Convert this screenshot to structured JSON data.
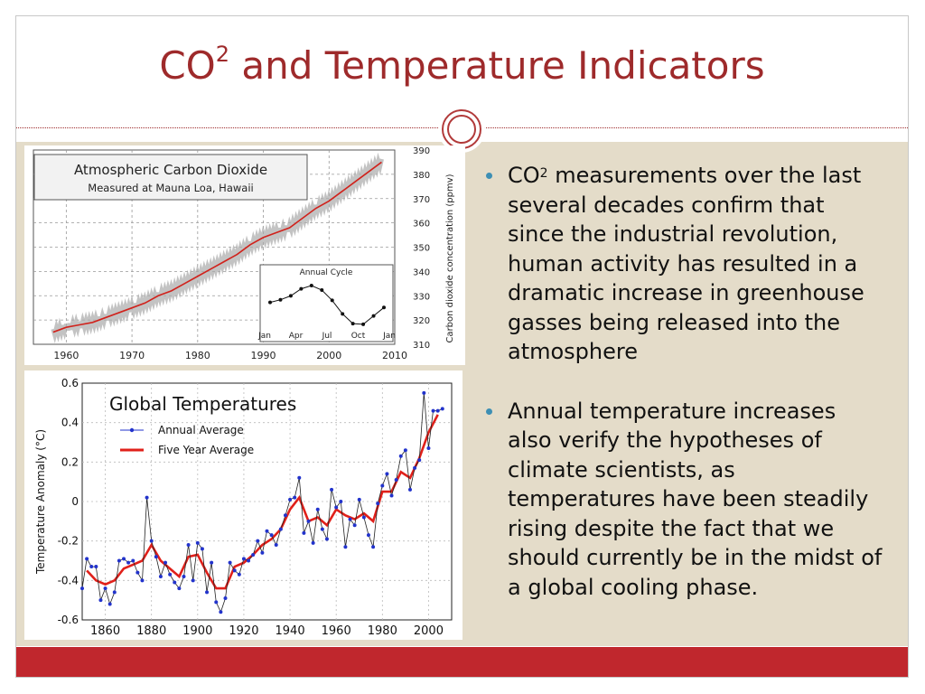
{
  "slide": {
    "title_main": "CO",
    "title_sup": "2",
    "title_rest": " and Temperature Indicators",
    "bullets": [
      {
        "lead": "CO",
        "sup": "2",
        "text": " measurements over the last several decades confirm that since the industrial revolution, human activity has resulted in a dramatic increase in greenhouse gasses being released into the atmosphere"
      },
      {
        "lead": "",
        "sup": "",
        "text": "Annual temperature increases also verify the hypotheses of climate scientists, as temperatures have been steadily rising despite the fact that we should currently be in the midst of a global cooling phase."
      }
    ],
    "colors": {
      "accent": "#9e2a2b",
      "bar": "#c0272d",
      "panel": "#e4dcc9",
      "bullet": "#3d8fb4"
    }
  },
  "chart_data": [
    {
      "type": "line",
      "title": "Atmospheric Carbon Dioxide",
      "subtitle": "Measured at Mauna Loa, Hawaii",
      "xlabel": "",
      "ylabel": "Carbon dioxide concentration (ppmv)",
      "xlim": [
        1955,
        2010
      ],
      "ylim": [
        310,
        390
      ],
      "x_ticks": [
        "1960",
        "1970",
        "1980",
        "1990",
        "2000",
        "2010"
      ],
      "y_ticks": [
        "310",
        "320",
        "330",
        "340",
        "350",
        "360",
        "370",
        "380",
        "390"
      ],
      "grid": true,
      "series": [
        {
          "x": [
            1958,
            1960,
            1962,
            1964,
            1966,
            1968,
            1970,
            1972,
            1974,
            1976,
            1978,
            1980,
            1982,
            1984,
            1986,
            1988,
            1990,
            1992,
            1994,
            1996,
            1998,
            2000,
            2002,
            2004,
            2006,
            2008
          ],
          "y": [
            315,
            317,
            318,
            319,
            321,
            323,
            325,
            327,
            330,
            332,
            335,
            338,
            341,
            344,
            347,
            351,
            354,
            356,
            358,
            362,
            366,
            369,
            373,
            377,
            381,
            385
          ]
        }
      ],
      "inset": {
        "title": "Annual Cycle",
        "x_ticks": [
          "Jan",
          "Apr",
          "Jul",
          "Oct",
          "Jan"
        ],
        "values": [
          0.2,
          0.6,
          1.2,
          2.3,
          2.8,
          2.1,
          0.5,
          -1.6,
          -3.1,
          -3.2,
          -1.9,
          -0.6
        ]
      }
    },
    {
      "type": "line",
      "title": "Global Temperatures",
      "xlabel": "",
      "ylabel": "Temperature Anomaly (°C)",
      "xlim": [
        1850,
        2010
      ],
      "ylim": [
        -0.6,
        0.6
      ],
      "x_ticks": [
        "1860",
        "1880",
        "1900",
        "1920",
        "1940",
        "1960",
        "1980",
        "2000"
      ],
      "y_ticks": [
        "0.6",
        "0.4",
        "0.2",
        "0",
        "-0.2",
        "-0.4",
        "-0.6"
      ],
      "grid": true,
      "legend_position": "top-left",
      "series": [
        {
          "name": "Annual Average",
          "x": [
            1850,
            1852,
            1854,
            1856,
            1858,
            1860,
            1862,
            1864,
            1866,
            1868,
            1870,
            1872,
            1874,
            1876,
            1878,
            1880,
            1882,
            1884,
            1886,
            1888,
            1890,
            1892,
            1894,
            1896,
            1898,
            1900,
            1902,
            1904,
            1906,
            1908,
            1910,
            1912,
            1914,
            1916,
            1918,
            1920,
            1922,
            1924,
            1926,
            1928,
            1930,
            1932,
            1934,
            1936,
            1938,
            1940,
            1942,
            1944,
            1946,
            1948,
            1950,
            1952,
            1954,
            1956,
            1958,
            1960,
            1962,
            1964,
            1966,
            1968,
            1970,
            1972,
            1974,
            1976,
            1978,
            1980,
            1982,
            1984,
            1986,
            1988,
            1990,
            1992,
            1994,
            1996,
            1998,
            2000,
            2002,
            2004,
            2006
          ],
          "y": [
            -0.44,
            -0.29,
            -0.33,
            -0.33,
            -0.5,
            -0.44,
            -0.52,
            -0.46,
            -0.3,
            -0.29,
            -0.31,
            -0.3,
            -0.36,
            -0.4,
            0.02,
            -0.2,
            -0.28,
            -0.38,
            -0.31,
            -0.37,
            -0.41,
            -0.44,
            -0.38,
            -0.22,
            -0.4,
            -0.21,
            -0.24,
            -0.46,
            -0.31,
            -0.51,
            -0.56,
            -0.49,
            -0.31,
            -0.35,
            -0.37,
            -0.29,
            -0.3,
            -0.27,
            -0.2,
            -0.26,
            -0.15,
            -0.17,
            -0.22,
            -0.14,
            -0.07,
            0.01,
            0.02,
            0.12,
            -0.16,
            -0.1,
            -0.21,
            -0.04,
            -0.14,
            -0.19,
            0.06,
            -0.03,
            0.0,
            -0.23,
            -0.09,
            -0.12,
            0.01,
            -0.08,
            -0.17,
            -0.23,
            -0.01,
            0.08,
            0.14,
            0.03,
            0.11,
            0.23,
            0.26,
            0.06,
            0.17,
            0.21,
            0.55,
            0.27,
            0.46,
            0.46,
            0.47
          ]
        },
        {
          "name": "Five Year Average",
          "x": [
            1852,
            1856,
            1860,
            1864,
            1868,
            1872,
            1876,
            1880,
            1884,
            1888,
            1892,
            1896,
            1900,
            1904,
            1908,
            1912,
            1916,
            1920,
            1924,
            1928,
            1932,
            1936,
            1940,
            1944,
            1948,
            1952,
            1956,
            1960,
            1964,
            1968,
            1972,
            1976,
            1980,
            1984,
            1988,
            1992,
            1996,
            2000,
            2004
          ],
          "y": [
            -0.35,
            -0.4,
            -0.42,
            -0.4,
            -0.34,
            -0.32,
            -0.3,
            -0.22,
            -0.3,
            -0.34,
            -0.38,
            -0.28,
            -0.27,
            -0.36,
            -0.44,
            -0.44,
            -0.33,
            -0.31,
            -0.27,
            -0.22,
            -0.19,
            -0.14,
            -0.04,
            0.02,
            -0.1,
            -0.08,
            -0.12,
            -0.04,
            -0.07,
            -0.09,
            -0.06,
            -0.1,
            0.05,
            0.05,
            0.15,
            0.12,
            0.22,
            0.35,
            0.44
          ]
        }
      ]
    }
  ]
}
